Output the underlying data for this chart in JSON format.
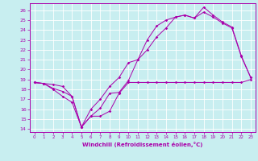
{
  "xlabel": "Windchill (Refroidissement éolien,°C)",
  "bg_color": "#c8eef0",
  "grid_color": "#ffffff",
  "line_color": "#aa00aa",
  "spine_color": "#aa00aa",
  "xlim": [
    -0.5,
    23.5
  ],
  "ylim": [
    13.7,
    26.7
  ],
  "yticks": [
    14,
    15,
    16,
    17,
    18,
    19,
    20,
    21,
    22,
    23,
    24,
    25,
    26
  ],
  "xticks": [
    0,
    1,
    2,
    3,
    4,
    5,
    6,
    7,
    8,
    9,
    10,
    11,
    12,
    13,
    14,
    15,
    16,
    17,
    18,
    19,
    20,
    21,
    22,
    23
  ],
  "curve1_x": [
    0,
    1,
    2,
    3,
    4,
    5,
    6,
    7,
    8,
    9,
    10,
    11,
    12,
    13,
    14,
    15,
    16,
    17,
    18,
    19,
    20,
    21,
    22,
    23
  ],
  "curve1_y": [
    18.7,
    18.6,
    18.1,
    17.8,
    17.3,
    14.2,
    15.3,
    15.3,
    15.8,
    17.6,
    18.7,
    18.7,
    18.7,
    18.7,
    18.7,
    18.7,
    18.7,
    18.7,
    18.7,
    18.7,
    18.7,
    18.7,
    18.7,
    19.0
  ],
  "curve2_x": [
    0,
    1,
    2,
    3,
    4,
    5,
    6,
    7,
    8,
    9,
    10,
    11,
    12,
    13,
    14,
    15,
    16,
    17,
    18,
    19,
    20,
    21,
    22,
    23
  ],
  "curve2_y": [
    18.7,
    18.6,
    18.0,
    17.3,
    16.7,
    14.2,
    15.3,
    16.1,
    17.6,
    17.7,
    18.9,
    21.0,
    23.0,
    24.4,
    25.0,
    25.3,
    25.5,
    25.2,
    25.8,
    25.3,
    24.7,
    24.2,
    21.3,
    19.2
  ],
  "curve3_x": [
    0,
    1,
    2,
    3,
    4,
    5,
    6,
    7,
    8,
    9,
    10,
    11,
    12,
    13,
    14,
    15,
    16,
    17,
    18,
    19,
    20,
    21,
    22,
    23
  ],
  "curve3_y": [
    18.7,
    18.6,
    18.5,
    18.3,
    17.3,
    14.2,
    16.0,
    17.0,
    18.3,
    19.2,
    20.7,
    21.0,
    22.0,
    23.3,
    24.2,
    25.3,
    25.5,
    25.2,
    26.3,
    25.5,
    24.8,
    24.3,
    21.4,
    19.2
  ]
}
